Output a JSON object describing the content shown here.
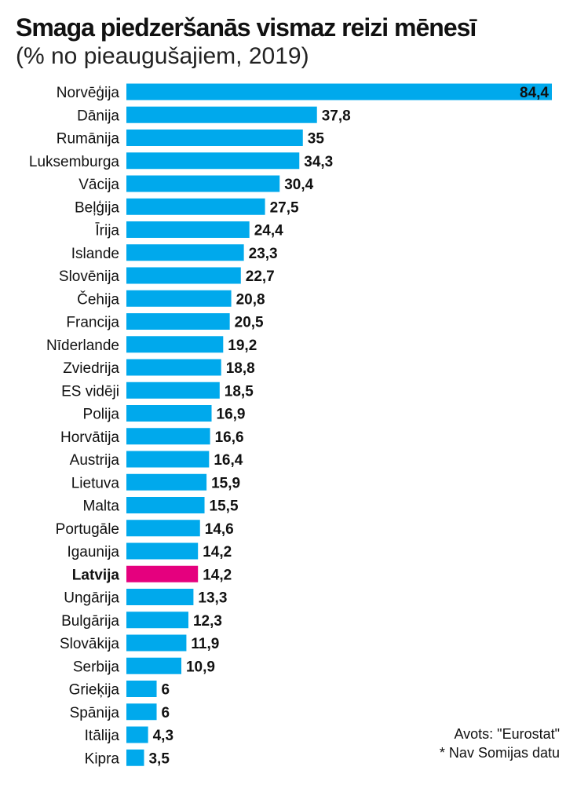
{
  "header": {
    "title": "Smaga piedzeršanās vismaz reizi mēnesī",
    "subtitle": "(% no pieaugušajiem, 2019)"
  },
  "footer": {
    "source": "Avots: \"Eurostat\"",
    "note": "* Nav Somijas datu"
  },
  "colors": {
    "bar": "#00a9ec",
    "highlight": "#e5007e",
    "text": "#111111"
  },
  "chart_data": {
    "type": "bar",
    "orientation": "horizontal",
    "title": "Smaga piedzeršanās vismaz reizi mēnesī",
    "subtitle": "(% no pieaugušajiem, 2019)",
    "grid": false,
    "legend": "none",
    "xlim": [
      0,
      84.4
    ],
    "categories": [
      "Norvēģija",
      "Dānija",
      "Rumānija",
      "Luksemburga",
      "Vācija",
      "Beļģija",
      "Īrija",
      "Islande",
      "Slovēnija",
      "Čehija",
      "Francija",
      "Nīderlande",
      "Zviedrija",
      "ES vidēji",
      "Polija",
      "Horvātija",
      "Austrija",
      "Lietuva",
      "Malta",
      "Portugāle",
      "Igaunija",
      "Latvija",
      "Ungārija",
      "Bulgārija",
      "Slovākija",
      "Serbija",
      "Grieķija",
      "Spānija",
      "Itālija",
      "Kipra"
    ],
    "values": [
      84.4,
      37.8,
      35,
      34.3,
      30.4,
      27.5,
      24.4,
      23.3,
      22.7,
      20.8,
      20.5,
      19.2,
      18.8,
      18.5,
      16.9,
      16.6,
      16.4,
      15.9,
      15.5,
      14.6,
      14.2,
      14.2,
      13.3,
      12.3,
      11.9,
      10.9,
      6,
      6,
      4.3,
      3.5
    ],
    "labels": [
      "84,4",
      "37,8",
      "35",
      "34,3",
      "30,4",
      "27,5",
      "24,4",
      "23,3",
      "22,7",
      "20,8",
      "20,5",
      "19,2",
      "18,8",
      "18,5",
      "16,9",
      "16,6",
      "16,4",
      "15,9",
      "15,5",
      "14,6",
      "14,2",
      "14,2",
      "13,3",
      "12,3",
      "11,9",
      "10,9",
      "6",
      "6",
      "4,3",
      "3,5"
    ],
    "highlight": "Latvija"
  }
}
